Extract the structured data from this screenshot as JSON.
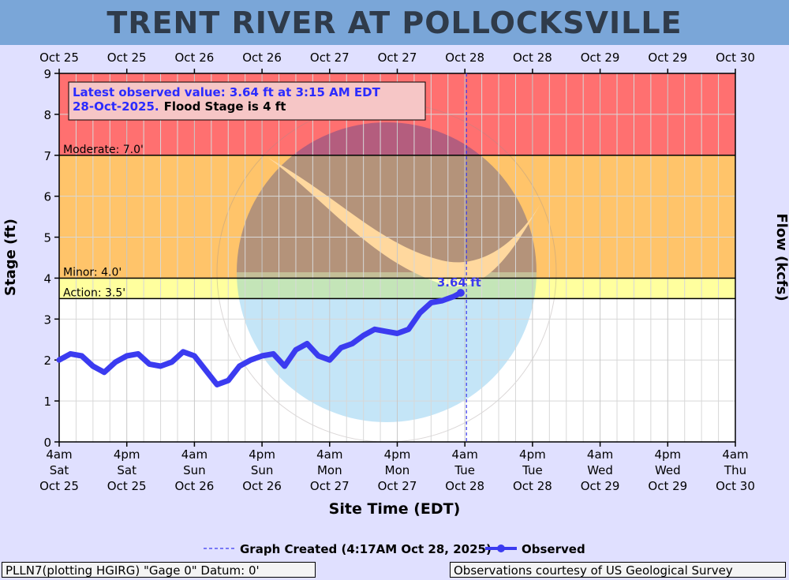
{
  "title": "TRENT RIVER AT POLLOCKSVILLE",
  "footer": {
    "left": "PLLN7(plotting HGIRG) \"Gage 0\" Datum: 0'",
    "right": "Observations courtesy of US Geological Survey"
  },
  "legend": {
    "created": "Graph Created (4:17AM Oct 28, 2025)",
    "observed": "Observed"
  },
  "colors": {
    "moderate": "#ff7070",
    "minor": "#ffc46a",
    "action": "#ffff9e",
    "observed": "#3b3bf0",
    "background": "#e0e0ff",
    "title_bar": "#7aa6d8"
  },
  "chart_data": {
    "type": "line",
    "title": "TRENT RIVER AT POLLOCKSVILLE",
    "xlabel": "Site Time (EDT)",
    "ylabel": "Stage (ft)",
    "ylabel_right": "Flow (kcfs)",
    "ylim": [
      0,
      9
    ],
    "yticks": [
      0,
      1,
      2,
      3,
      4,
      5,
      6,
      7,
      8,
      9
    ],
    "xlim": [
      "2025-10-25T04:00",
      "2025-10-30T04:00"
    ],
    "grid": true,
    "top_tick_labels": [
      "Oct 25",
      "Oct 25",
      "Oct 26",
      "Oct 26",
      "Oct 27",
      "Oct 27",
      "Oct 28",
      "Oct 28",
      "Oct 29",
      "Oct 29",
      "Oct 30"
    ],
    "bottom_tick_labels": [
      [
        "4am",
        "Sat",
        "Oct 25"
      ],
      [
        "4pm",
        "Sat",
        "Oct 25"
      ],
      [
        "4am",
        "Sun",
        "Oct 26"
      ],
      [
        "4pm",
        "Sun",
        "Oct 26"
      ],
      [
        "4am",
        "Mon",
        "Oct 27"
      ],
      [
        "4pm",
        "Mon",
        "Oct 27"
      ],
      [
        "4am",
        "Tue",
        "Oct 28"
      ],
      [
        "4pm",
        "Tue",
        "Oct 28"
      ],
      [
        "4am",
        "Wed",
        "Oct 29"
      ],
      [
        "4pm",
        "Wed",
        "Oct 29"
      ],
      [
        "4am",
        "Thu",
        "Oct 30"
      ]
    ],
    "flood_categories": [
      {
        "name": "Moderate",
        "label": "Moderate: 7.0'",
        "from": 7.0,
        "to": 9.0
      },
      {
        "name": "Minor",
        "label": "Minor: 4.0'",
        "from": 4.0,
        "to": 7.0
      },
      {
        "name": "Action",
        "label": "Action: 3.5'",
        "from": 3.5,
        "to": 4.0
      }
    ],
    "graph_created": "2025-10-28T04:17",
    "annotation_box": {
      "observed_text": "Latest observed value: 3.64 ft at 3:15 AM EDT 28-Oct-2025.",
      "flood_text": "Flood Stage is 4 ft"
    },
    "latest_label": "3.64 ft",
    "series": [
      {
        "name": "Observed",
        "x": [
          "2025-10-25T04:00",
          "2025-10-25T06:00",
          "2025-10-25T08:00",
          "2025-10-25T10:00",
          "2025-10-25T12:00",
          "2025-10-25T14:00",
          "2025-10-25T16:00",
          "2025-10-25T18:00",
          "2025-10-25T20:00",
          "2025-10-25T22:00",
          "2025-10-26T00:00",
          "2025-10-26T02:00",
          "2025-10-26T04:00",
          "2025-10-26T06:00",
          "2025-10-26T08:00",
          "2025-10-26T10:00",
          "2025-10-26T12:00",
          "2025-10-26T14:00",
          "2025-10-26T16:00",
          "2025-10-26T18:00",
          "2025-10-26T20:00",
          "2025-10-26T22:00",
          "2025-10-27T00:00",
          "2025-10-27T02:00",
          "2025-10-27T04:00",
          "2025-10-27T06:00",
          "2025-10-27T08:00",
          "2025-10-27T10:00",
          "2025-10-27T12:00",
          "2025-10-27T14:00",
          "2025-10-27T16:00",
          "2025-10-27T18:00",
          "2025-10-27T20:00",
          "2025-10-27T22:00",
          "2025-10-28T00:00",
          "2025-10-28T02:00",
          "2025-10-28T03:15"
        ],
        "y": [
          2.0,
          2.15,
          2.1,
          1.85,
          1.7,
          1.95,
          2.1,
          2.15,
          1.9,
          1.85,
          1.95,
          2.2,
          2.1,
          1.75,
          1.4,
          1.5,
          1.85,
          2.0,
          2.1,
          2.15,
          1.85,
          2.25,
          2.4,
          2.1,
          2.0,
          2.3,
          2.4,
          2.6,
          2.75,
          2.7,
          2.65,
          2.75,
          3.15,
          3.4,
          3.45,
          3.55,
          3.64
        ]
      }
    ]
  }
}
